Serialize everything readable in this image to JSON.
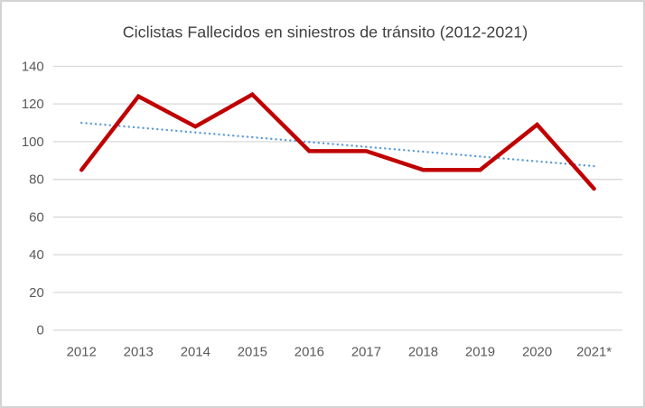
{
  "chart_data": {
    "type": "line",
    "title": "Ciclistas Fallecidos en siniestros de tránsito (2012-2021)",
    "xlabel": "",
    "ylabel": "",
    "categories": [
      "2012",
      "2013",
      "2014",
      "2015",
      "2016",
      "2017",
      "2018",
      "2019",
      "2020",
      "2021*"
    ],
    "values": [
      85,
      124,
      108,
      125,
      95,
      95,
      85,
      85,
      109,
      75
    ],
    "trendline": {
      "type": "linear",
      "style": "dotted",
      "start_value": 110,
      "end_value": 87
    },
    "ylim": [
      0,
      140
    ],
    "y_ticks": [
      0,
      20,
      40,
      60,
      80,
      100,
      120,
      140
    ],
    "grid": "horizontal",
    "legend": "none"
  },
  "colors": {
    "series": "#c00000",
    "trendline": "#5b9bd5",
    "gridline": "#d9d9d9",
    "tick_label": "#595959",
    "title": "#404040",
    "frame_border": "#d3d3d3",
    "background": "#ffffff"
  }
}
